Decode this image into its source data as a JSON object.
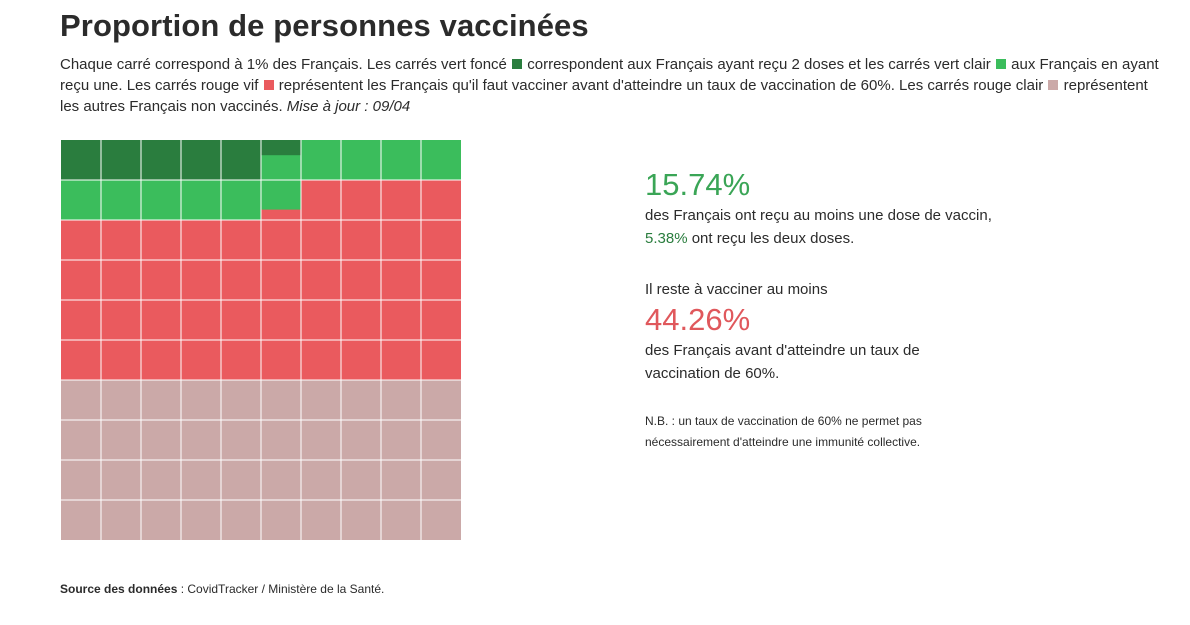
{
  "title": "Proportion de personnes vaccinées",
  "intro": {
    "t1": "Chaque carré correspond à 1% des Français. Les carrés vert foncé",
    "t2": "correspondent aux Français ayant reçu 2 doses et les carrés vert clair",
    "t3": "aux Français en ayant reçu une. Les carrés rouge vif",
    "t4": "représentent les Français qu'il faut vacciner avant d'atteindre un taux de vaccination de 60%. Les carrés rouge clair",
    "t5": "représentent les autres Français non vaccinés.",
    "update": "Mise à jour : 09/04"
  },
  "colors": {
    "two_doses": "#2a7d3e",
    "one_dose": "#3bbd5c",
    "to_vaccinate": "#ea5a5e",
    "others": "#cba9a8",
    "grid_line": "#ffffff",
    "green_text": "#3aa556",
    "dark_green_text": "#2a7d3e",
    "red_text": "#e0585c"
  },
  "stats": {
    "pct_one_dose": "15.74%",
    "text_one_dose_a": "des Français ont reçu au moins une dose de vaccin,",
    "pct_two_doses": "5.38%",
    "text_one_dose_b": "ont reçu les deux doses.",
    "remaining_label": "Il reste à vacciner au moins",
    "pct_remaining": "44.26%",
    "remaining_text": "des Français avant d'atteindre un taux de vaccination de 60%.",
    "nb": "N.B. : un taux de vaccination de 60% ne permet pas nécessairement d'atteindre une immunité collective."
  },
  "source": {
    "label": "Source des données",
    "text": " : CovidTracker / Ministère de la Santé."
  },
  "chart_data": {
    "type": "waffle",
    "rows": 10,
    "cols": 10,
    "unit_percent": 1,
    "series": [
      {
        "name": "2 doses",
        "value": 5.38
      },
      {
        "name": "1 dose",
        "value": 10.36
      },
      {
        "name": "à vacciner avant 60%",
        "value": 44.26
      },
      {
        "name": "autres non vaccinés",
        "value": 40.0
      }
    ]
  }
}
